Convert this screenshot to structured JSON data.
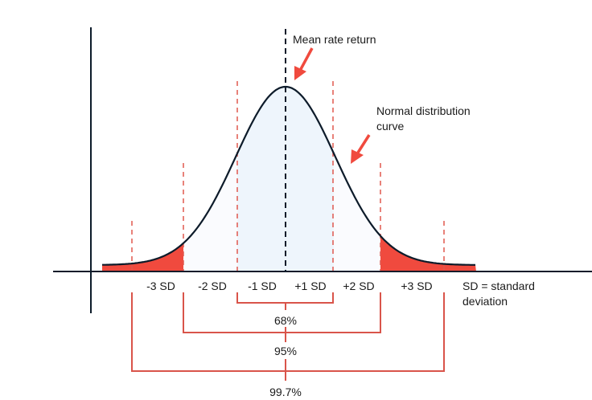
{
  "annotations": {
    "mean": "Mean rate return",
    "curve_line1": "Normal distribution",
    "curve_line2": "curve"
  },
  "sd_labels": [
    "-3 SD",
    "-2 SD",
    "-1 SD",
    "+1 SD",
    "+2 SD",
    "+3 SD"
  ],
  "legend": {
    "line1": "SD = standard",
    "line2": "deviation"
  },
  "ranges": {
    "one_sd": "68%",
    "two_sd": "95%",
    "three_sd": "99.7%"
  },
  "colors": {
    "curve": "#0d1b2a",
    "axis": "#0d1b2a",
    "accent_red": "#f04a3e",
    "bracket_red": "#d9544a",
    "center_fill": "#eef5fc",
    "mid_fill": "#fafbfe"
  }
}
